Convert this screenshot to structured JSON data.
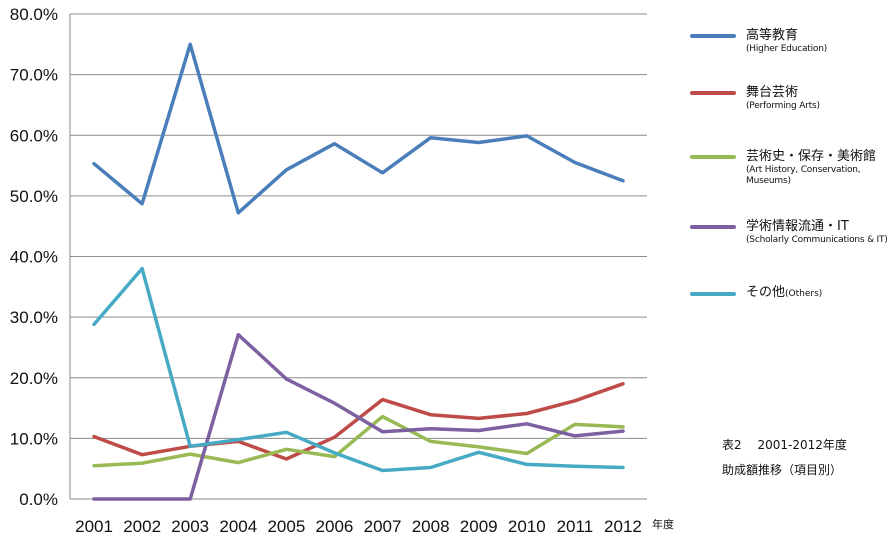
{
  "chart_data": {
    "type": "line",
    "categories": [
      "2001",
      "2002",
      "2003",
      "2004",
      "2005",
      "2006",
      "2007",
      "2008",
      "2009",
      "2010",
      "2011",
      "2012"
    ],
    "x_unit": "年度",
    "ylim": [
      0,
      80
    ],
    "ytick_values": [
      0,
      10,
      20,
      30,
      40,
      50,
      60,
      70,
      80
    ],
    "ytick_labels": [
      "0.0%",
      "10.0%",
      "20.0%",
      "30.0%",
      "40.0%",
      "50.0%",
      "60.0%",
      "70.0%",
      "80.0%"
    ],
    "grid": "horizontal",
    "legend_position": "right",
    "series": [
      {
        "name": "高等教育",
        "subname": "(Higher Education)",
        "color": "#4a7ebb",
        "values": [
          55.3,
          48.7,
          75.0,
          47.2,
          54.3,
          58.6,
          53.8,
          59.6,
          58.8,
          59.9,
          55.5,
          52.5
        ]
      },
      {
        "name": "舞台芸術",
        "subname": "(Performing Arts)",
        "color": "#be4b48",
        "values": [
          10.3,
          7.3,
          8.7,
          9.5,
          6.6,
          10.2,
          16.4,
          13.9,
          13.3,
          14.1,
          16.2,
          19.0
        ]
      },
      {
        "name": "芸術史・保存・美術館",
        "subname": "(Art History, Conservation, Museums)",
        "color": "#98b954",
        "values": [
          5.5,
          5.9,
          7.4,
          6.0,
          8.2,
          7.0,
          13.6,
          9.5,
          8.6,
          7.5,
          12.3,
          11.9
        ]
      },
      {
        "name": "学術情報流通・IT",
        "subname": "(Scholarly Communications & IT)",
        "color": "#7d60a0",
        "values": [
          0.0,
          0.0,
          0.0,
          27.1,
          19.8,
          15.8,
          11.1,
          11.6,
          11.3,
          12.4,
          10.4,
          11.2
        ]
      },
      {
        "name": "その他",
        "subname": "(Others)",
        "color": "#46aac5",
        "values": [
          28.8,
          38.0,
          8.7,
          9.8,
          11.0,
          7.6,
          4.7,
          5.2,
          7.7,
          5.7,
          5.4,
          5.2
        ]
      }
    ]
  },
  "note": {
    "line1": "表2　 2001-2012年度",
    "line2": "助成額推移（項目別）"
  }
}
